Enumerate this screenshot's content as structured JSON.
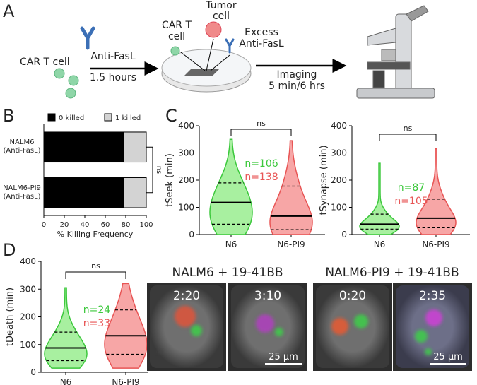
{
  "panel_labels": {
    "a": "A",
    "b": "B",
    "c": "C",
    "d": "D"
  },
  "schematic": {
    "car_t": "CAR T cell",
    "anti_fasl": "Anti-FasL",
    "incubation": "1.5 hours",
    "car_t_dish": [
      "CAR T",
      "cell"
    ],
    "tumor": [
      "Tumor",
      "cell"
    ],
    "excess": [
      "Excess",
      "Anti-FasL"
    ],
    "imaging": "Imaging",
    "interval": "5 min/6 hrs"
  },
  "chart_data": [
    {
      "type": "bar",
      "orientation": "horizontal",
      "stacked": true,
      "categories": [
        "NALM6 (Anti-FasL)",
        "NALM6-PI9 (Anti-FasL)"
      ],
      "series": [
        {
          "name": "0 killed",
          "color": "#000000",
          "values": [
            78,
            78
          ]
        },
        {
          "name": "1 killed",
          "color": "#d3d3d3",
          "values": [
            22,
            22
          ]
        }
      ],
      "xlim": [
        0,
        100
      ],
      "xticks": [
        0,
        20,
        40,
        60,
        80,
        100
      ],
      "xlabel": "% Killing Frequency",
      "annotation": "ns"
    },
    {
      "type": "violin",
      "ylabel": "tSeek (min)",
      "ylim": [
        0,
        400
      ],
      "yticks": [
        0,
        100,
        200,
        300,
        400
      ],
      "categories": [
        "N6",
        "N6-PI9"
      ],
      "annotation": "ns",
      "violins": [
        {
          "color": "#3cc83c",
          "fill": "#a8f0a0",
          "min": 0,
          "q1": 38,
          "median": 118,
          "q3": 190,
          "max": 350,
          "n_label": "n=106"
        },
        {
          "color": "#e85555",
          "fill": "#f7a6a6",
          "min": 0,
          "q1": 18,
          "median": 68,
          "q3": 178,
          "max": 345,
          "n_label": "n=138"
        }
      ]
    },
    {
      "type": "violin",
      "ylabel": "tSynapse (min)",
      "ylim": [
        0,
        400
      ],
      "yticks": [
        0,
        100,
        200,
        300,
        400
      ],
      "categories": [
        "N6",
        "N6-PI9"
      ],
      "annotation": "ns",
      "violins": [
        {
          "color": "#3cc83c",
          "fill": "#a8f0a0",
          "min": 0,
          "q1": 20,
          "median": 38,
          "q3": 75,
          "max": 262,
          "n_label": "n=87"
        },
        {
          "color": "#e85555",
          "fill": "#f7a6a6",
          "min": 0,
          "q1": 25,
          "median": 60,
          "q3": 130,
          "max": 315,
          "n_label": "n=105"
        }
      ]
    },
    {
      "type": "violin",
      "ylabel": "tDeath (min)",
      "ylim": [
        0,
        400
      ],
      "yticks": [
        0,
        100,
        200,
        300,
        400
      ],
      "categories": [
        "N6",
        "N6-PI9"
      ],
      "annotation": "ns",
      "violins": [
        {
          "color": "#3cc83c",
          "fill": "#a8f0a0",
          "min": 15,
          "q1": 42,
          "median": 88,
          "q3": 145,
          "max": 305,
          "n_label": "n=24"
        },
        {
          "color": "#e85555",
          "fill": "#f7a6a6",
          "min": 15,
          "q1": 65,
          "median": 132,
          "q3": 225,
          "max": 320,
          "n_label": "n=33"
        }
      ]
    }
  ],
  "micrographs": [
    {
      "title": "NALM6 + 19-41BB",
      "frames": [
        {
          "time": "2:20"
        },
        {
          "time": "3:10",
          "scale_bar": "25 µm"
        }
      ]
    },
    {
      "title": "NALM6-PI9 + 19-41BB",
      "frames": [
        {
          "time": "0:20"
        },
        {
          "time": "2:35",
          "scale_bar": "25 µm"
        }
      ]
    }
  ]
}
